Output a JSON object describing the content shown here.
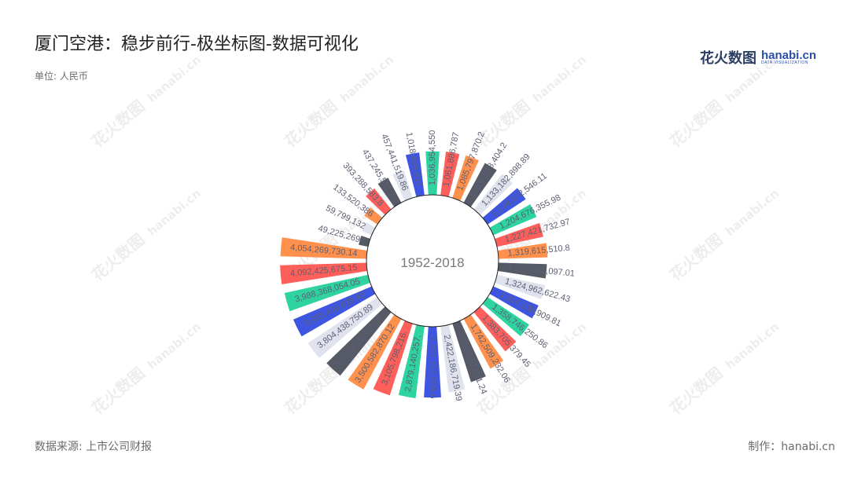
{
  "header": {
    "title": "厦门空港：稳步前行-极坐标图-数据可视化",
    "unit": "单位: 人民币"
  },
  "footer": {
    "source": "数据来源: 上市公司财报",
    "maker": "制作：hanabi.cn"
  },
  "logo": {
    "cn": "花火数图",
    "en": "hanabi.cn",
    "sub": "DATA VISUALIZATION"
  },
  "watermark": {
    "cn": "花火数图",
    "en": "hanabi.cn"
  },
  "chart_data": {
    "type": "bar",
    "layout": "polar-radial",
    "center_label": "1952-2018",
    "palette": [
      "#2ed3a0",
      "#e0e3ee",
      "#ff5f5a",
      "#ff914d",
      "#555a66",
      "#3d55e0"
    ],
    "labels": [
      "1,036,954,550",
      "1,061,886,787",
      "1,085,797,870.2",
      "1,109,838,404.2",
      "1,133,182,898.89",
      "1,144,172,546.11",
      "1,204,676,355.98",
      "1,227,421,732.97",
      "1,319,615,510.8",
      "1,279,042,097.01",
      "1,324,962,622.43",
      "1,314,138,909.81",
      "1,358,746,250.86",
      "1,383,705,379.45",
      "1,742,509,232.06",
      "2,060,372,851.24",
      "2,422,186,719.39",
      "2,751,167,559.6",
      "2,879,140,257.",
      "3,105,798,216.",
      "3,500,582,870.12",
      "3,625,609,986.98",
      "3,804,438,750.89",
      "3,958,446,625.43",
      "3,988,368,054.05",
      "4,092,425,675.15",
      "4,054,269,730.14",
      "49,225,269",
      "59,799,132",
      "133,520,386",
      "393,288,583.8",
      "437,245,511.2",
      "457,441,519.86",
      "1,018,409,817"
    ],
    "values": [
      1036954550,
      1061886787,
      1085797870.2,
      1109838404.2,
      1133182898.89,
      1144172546.11,
      1204676355.98,
      1227421732.97,
      1319615510.8,
      1279042097.01,
      1324962622.43,
      1314138909.81,
      1358746250.86,
      1383705379.45,
      1742509232.06,
      2060372851.24,
      2422186719.39,
      2751167559.6,
      2879140257,
      3105798216,
      3500582870.12,
      3625609986.98,
      3804438750.89,
      3958446625.43,
      3988368054.05,
      4092425675.15,
      4054269730.14,
      49225269,
      59799132,
      133520386,
      393288583.8,
      437245511.2,
      457441519.86,
      1018409817
    ],
    "colors": [
      "#2ed3a0",
      "#ff5f5a",
      "#ff914d",
      "#555a66",
      "#e0e3ee",
      "#3d55e0",
      "#2ed3a0",
      "#ff5f5a",
      "#ff914d",
      "#555a66",
      "#e0e3ee",
      "#3d55e0",
      "#2ed3a0",
      "#ff5f5a",
      "#ff914d",
      "#555a66",
      "#e0e3ee",
      "#3d55e0",
      "#2ed3a0",
      "#ff5f5a",
      "#ff914d",
      "#555a66",
      "#e0e3ee",
      "#3d55e0",
      "#2ed3a0",
      "#ff5f5a",
      "#ff914d",
      "#555a66",
      "#e0e3ee",
      "#ff914d",
      "#ff5f5a",
      "#555a66",
      "#e0e3ee",
      "#3d55e0"
    ]
  }
}
